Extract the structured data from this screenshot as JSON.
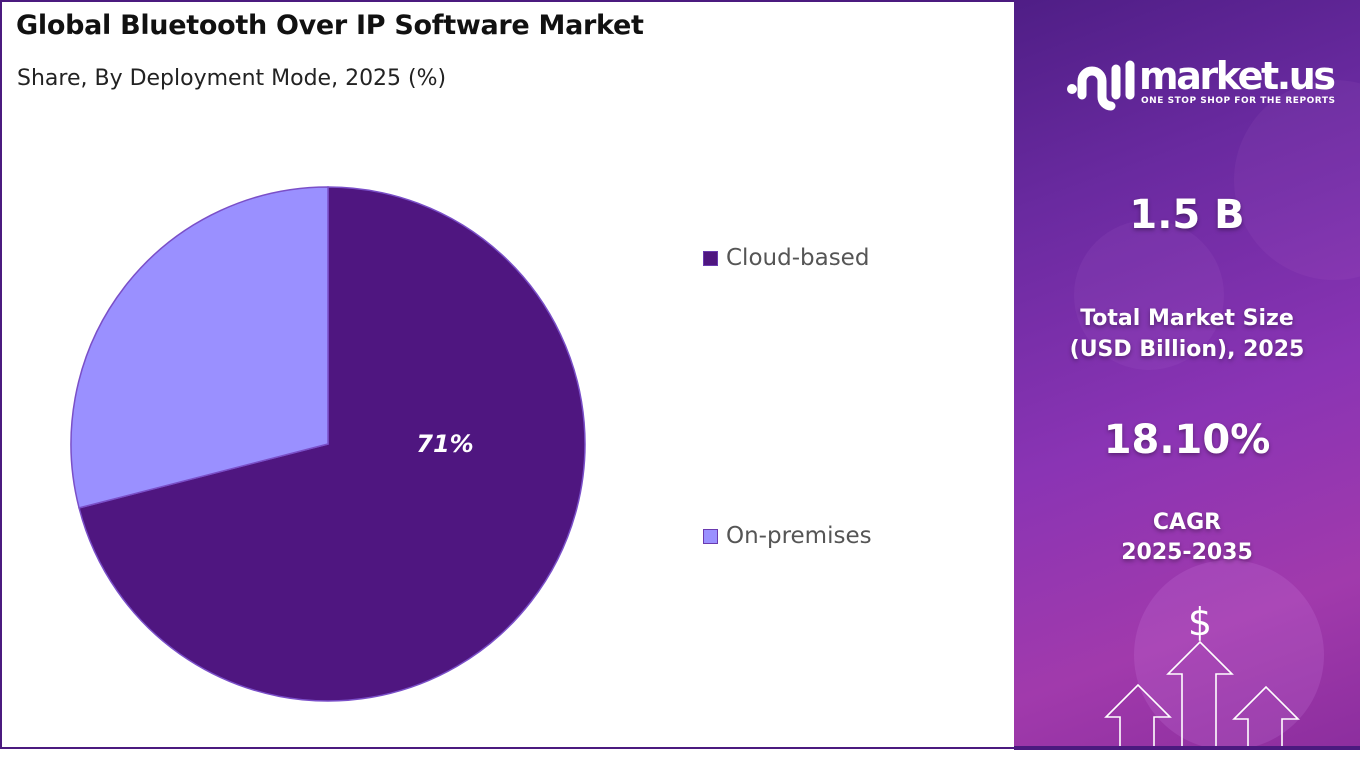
{
  "chart_data": {
    "type": "pie",
    "title": "Global Bluetooth Over IP Software Market",
    "subtitle": "Share, By Deployment Mode, 2025 (%)",
    "categories": [
      "Cloud-based",
      "On-premises"
    ],
    "values": [
      71,
      29
    ],
    "data_labels": [
      "71%",
      ""
    ],
    "colors": [
      "#4f1680",
      "#9a90ff"
    ],
    "legend_position": "right",
    "start_angle": "top, clockwise"
  },
  "side_panel": {
    "logo": {
      "name": "market.us",
      "tagline": "ONE STOP SHOP FOR THE REPORTS"
    },
    "market_size": "1.5 B",
    "market_size_label": [
      "Total Market Size",
      "(USD Billion), 2025"
    ],
    "cagr": "18.10%",
    "cagr_label": [
      "CAGR",
      "2025-2035"
    ],
    "icons": [
      "dollar-icon",
      "arrow-up-icon"
    ]
  }
}
